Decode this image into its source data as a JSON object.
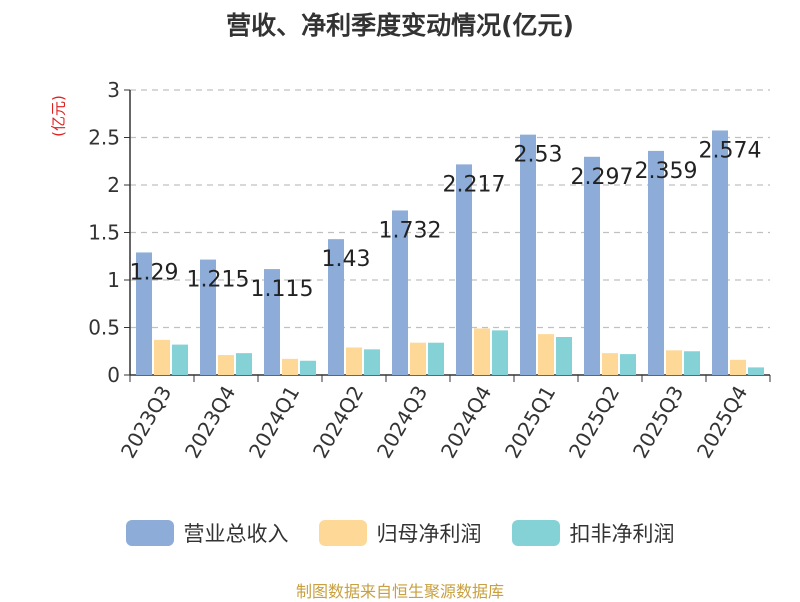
{
  "chart_data": {
    "type": "bar",
    "title": "营收、净利季度变动情况(亿元)",
    "ylabel": "(亿元)",
    "ylim": [
      0,
      3
    ],
    "yticks": [
      "0",
      "0.5",
      "1",
      "1.5",
      "2",
      "2.5",
      "3"
    ],
    "grid": true,
    "legend_position": "bottom",
    "categories": [
      "2023Q3",
      "2023Q4",
      "2024Q1",
      "2024Q2",
      "2024Q3",
      "2024Q4",
      "2025Q1",
      "2025Q2",
      "2025Q3",
      "2025Q4"
    ],
    "series": [
      {
        "name": "营业总收入",
        "color": "#8eacd8",
        "values": [
          1.29,
          1.215,
          1.115,
          1.43,
          1.732,
          2.217,
          2.53,
          2.297,
          2.359,
          2.574
        ],
        "labels": [
          "1.29",
          "1.215",
          "1.115",
          "1.43",
          "1.732",
          "2.217",
          "2.53",
          "2.297",
          "2.359",
          "2.574"
        ]
      },
      {
        "name": "归母净利润",
        "color": "#fdd897",
        "values": [
          0.37,
          0.21,
          0.17,
          0.29,
          0.34,
          0.49,
          0.43,
          0.23,
          0.26,
          0.16
        ]
      },
      {
        "name": "扣非净利润",
        "color": "#85d2d6",
        "values": [
          0.32,
          0.23,
          0.15,
          0.27,
          0.34,
          0.47,
          0.4,
          0.22,
          0.25,
          0.08
        ]
      }
    ]
  },
  "source": "制图数据来自恒生聚源数据库"
}
